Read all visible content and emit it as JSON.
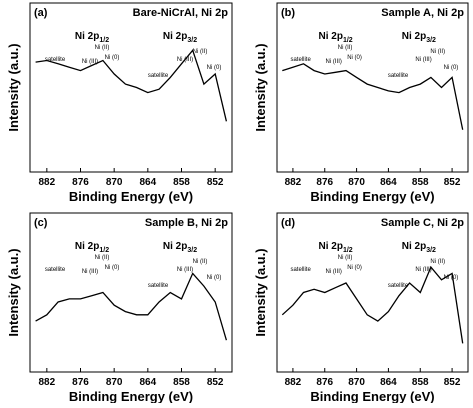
{
  "chart_data": [
    {
      "type": "line",
      "panel_label": "(a)",
      "title": "Bare-NiCrAl, Ni 2p",
      "y_label": "Intensity (a.u.)",
      "x_label": "Binding Energy (eV)",
      "xlim": [
        885,
        849
      ],
      "xticks": [
        882,
        876,
        870,
        864,
        858,
        852
      ],
      "ylim": [
        0,
        10
      ],
      "peaks": [
        {
          "text": "Ni 2p",
          "sub": "1/2"
        },
        {
          "text": "Ni 2p",
          "sub": "3/2"
        }
      ],
      "annotations": [
        "satellite",
        "Ni (III)",
        "Ni (II)",
        "Ni (0)",
        "satellite",
        "Ni (III)",
        "Ni (II)",
        "Ni (0)"
      ],
      "x": [
        884,
        882,
        880,
        878,
        876,
        874,
        872,
        870,
        868,
        866,
        864,
        862,
        860,
        858,
        856,
        854,
        852,
        850
      ],
      "series": [
        {
          "color": "#000000",
          "values": [
            6.5,
            6.6,
            6.4,
            6.2,
            6.0,
            6.3,
            6.6,
            5.8,
            5.2,
            5.0,
            4.7,
            4.9,
            5.6,
            6.4,
            7.2,
            5.2,
            5.8,
            3.0
          ]
        }
      ]
    },
    {
      "type": "line",
      "panel_label": "(b)",
      "title": "Sample A, Ni 2p",
      "y_label": "Intensity (a.u.)",
      "x_label": "Binding Energy (eV)",
      "xlim": [
        885,
        849
      ],
      "xticks": [
        882,
        876,
        870,
        864,
        858,
        852
      ],
      "ylim": [
        0,
        10
      ],
      "peaks": [
        {
          "text": "Ni 2p",
          "sub": "1/2"
        },
        {
          "text": "Ni 2p",
          "sub": "3/2"
        }
      ],
      "annotations": [
        "satellite",
        "Ni (III)",
        "Ni (II)",
        "Ni (0)",
        "satellite",
        "Ni (III)",
        "Ni (II)",
        "Ni (0)"
      ],
      "x": [
        884,
        882,
        880,
        878,
        876,
        874,
        872,
        870,
        868,
        866,
        864,
        862,
        860,
        858,
        856,
        854,
        852,
        850
      ],
      "series": [
        {
          "color": "#000000",
          "values": [
            6.0,
            6.2,
            6.4,
            6.0,
            5.8,
            5.9,
            6.0,
            5.6,
            5.2,
            5.0,
            4.8,
            4.7,
            5.0,
            5.2,
            5.6,
            5.0,
            5.6,
            2.5
          ]
        }
      ]
    },
    {
      "type": "line",
      "panel_label": "(c)",
      "title": "Sample B, Ni 2p",
      "y_label": "Intensity (a.u.)",
      "x_label": "Binding Energy (eV)",
      "xlim": [
        885,
        849
      ],
      "xticks": [
        882,
        876,
        870,
        864,
        858,
        852
      ],
      "ylim": [
        0,
        10
      ],
      "peaks": [
        {
          "text": "Ni 2p",
          "sub": "1/2"
        },
        {
          "text": "Ni 2p",
          "sub": "3/2"
        }
      ],
      "annotations": [
        "satellite",
        "Ni (III)",
        "Ni (II)",
        "Ni (0)",
        "satellite",
        "Ni (III)",
        "Ni (II)",
        "Ni (0)"
      ],
      "x": [
        884,
        882,
        880,
        878,
        876,
        874,
        872,
        870,
        868,
        866,
        864,
        862,
        860,
        858,
        856,
        854,
        852,
        850
      ],
      "series": [
        {
          "color": "#000000",
          "values": [
            3.2,
            3.6,
            4.4,
            4.6,
            4.6,
            4.8,
            5.0,
            4.2,
            3.8,
            3.6,
            3.6,
            4.4,
            5.0,
            4.6,
            6.2,
            5.4,
            4.4,
            2.0
          ]
        }
      ]
    },
    {
      "type": "line",
      "panel_label": "(d)",
      "title": "Sample C, Ni 2p",
      "y_label": "Intensity (a.u.)",
      "x_label": "Binding Energy (eV)",
      "xlim": [
        885,
        849
      ],
      "xticks": [
        882,
        876,
        870,
        864,
        858,
        852
      ],
      "ylim": [
        0,
        10
      ],
      "peaks": [
        {
          "text": "Ni 2p",
          "sub": "1/2"
        },
        {
          "text": "Ni 2p",
          "sub": "3/2"
        }
      ],
      "annotations": [
        "satellite",
        "Ni (III)",
        "Ni (II)",
        "Ni (0)",
        "satellite",
        "Ni (III)",
        "Ni (II)",
        "Ni (0)"
      ],
      "x": [
        884,
        882,
        880,
        878,
        876,
        874,
        872,
        870,
        868,
        866,
        864,
        862,
        860,
        858,
        856,
        854,
        852,
        850
      ],
      "series": [
        {
          "color": "#000000",
          "values": [
            3.6,
            4.2,
            5.0,
            5.2,
            5.0,
            5.3,
            5.6,
            4.6,
            3.6,
            3.2,
            3.8,
            4.8,
            5.6,
            5.0,
            6.6,
            5.8,
            6.2,
            1.8
          ]
        }
      ]
    }
  ]
}
